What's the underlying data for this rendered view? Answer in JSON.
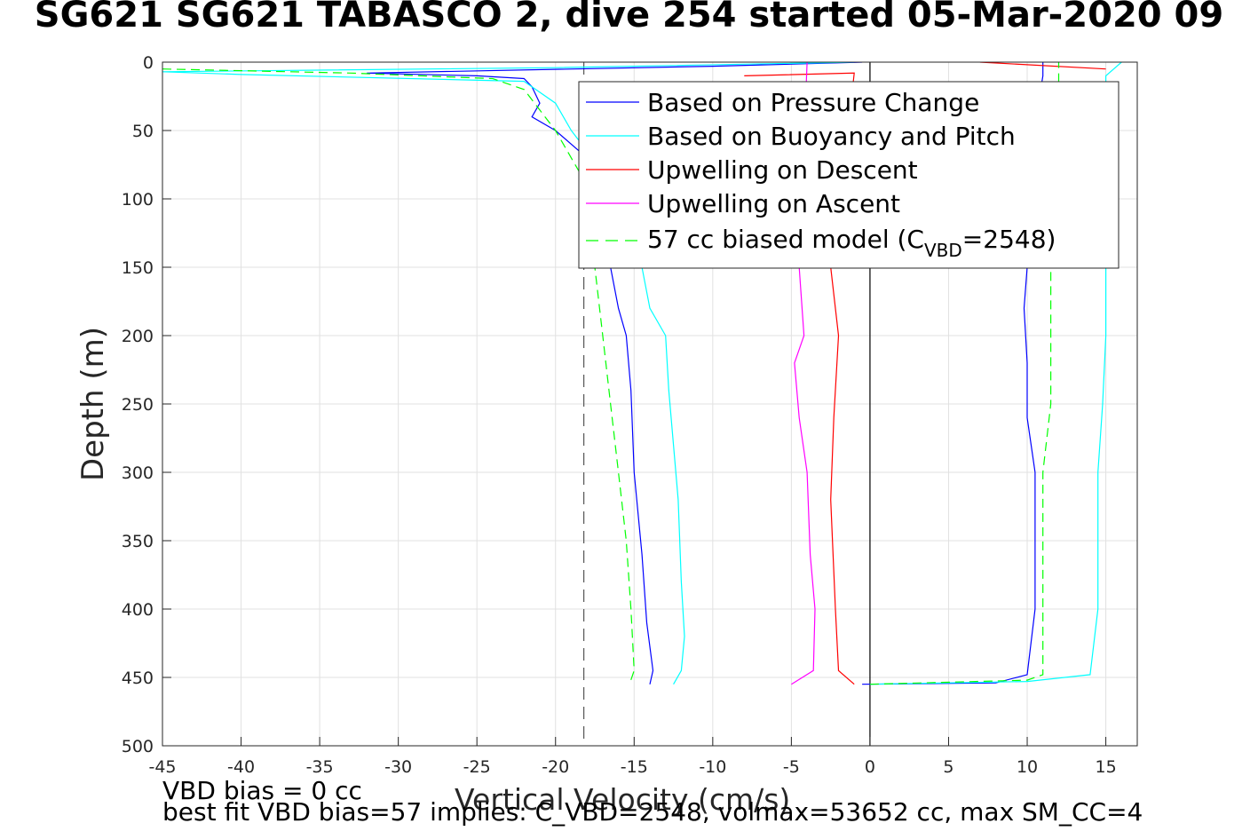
{
  "chart_data": {
    "type": "line",
    "title": "SG621 SG621 TABASCO 2, dive 254 started 05-Mar-2020 09",
    "xlabel": "Vertical Velocity (cm/s)",
    "ylabel": "Depth (m)",
    "xlim": [
      -45,
      17
    ],
    "ylim": [
      0,
      500
    ],
    "y_reversed": true,
    "grid": true,
    "legend_position": "top-right",
    "x_ticks": [
      "-45",
      "-40",
      "-35",
      "-30",
      "-25",
      "-20",
      "-15",
      "-10",
      "-5",
      "0",
      "5",
      "10",
      "15"
    ],
    "y_ticks": [
      "0",
      "50",
      "100",
      "150",
      "200",
      "250",
      "300",
      "350",
      "400",
      "450",
      "500"
    ],
    "reference_lines": [
      {
        "type": "vertical",
        "x": 0,
        "style": "solid",
        "color": "#000000"
      },
      {
        "type": "vertical",
        "x": -18.2,
        "style": "dashed",
        "color": "#555555"
      }
    ],
    "series": [
      {
        "name": "Based on Pressure Change",
        "color": "#0000ff",
        "style": "solid",
        "descent": [
          [
            -0.5,
            0
          ],
          [
            -10,
            3
          ],
          [
            -32,
            8
          ],
          [
            -25,
            10
          ],
          [
            -22,
            12
          ],
          [
            -21.5,
            18
          ],
          [
            -21,
            30
          ],
          [
            -21.5,
            40
          ],
          [
            -20,
            50
          ],
          [
            -18,
            70
          ],
          [
            -16.5,
            150
          ],
          [
            -16,
            180
          ],
          [
            -15.5,
            200
          ],
          [
            -15.2,
            240
          ],
          [
            -15,
            300
          ],
          [
            -14.5,
            360
          ],
          [
            -14.2,
            410
          ],
          [
            -13.8,
            445
          ],
          [
            -14,
            455
          ]
        ],
        "ascent": [
          [
            -0.5,
            455
          ],
          [
            8,
            454
          ],
          [
            10,
            448
          ],
          [
            10.5,
            400
          ],
          [
            10.5,
            300
          ],
          [
            10,
            260
          ],
          [
            10,
            220
          ],
          [
            9.8,
            180
          ],
          [
            10,
            150
          ],
          [
            10.3,
            60
          ],
          [
            11,
            10
          ],
          [
            11,
            0
          ]
        ]
      },
      {
        "name": "Based on Buoyancy and Pitch",
        "color": "#00ffff",
        "style": "solid",
        "descent": [
          [
            -1,
            0
          ],
          [
            -20,
            4
          ],
          [
            -45,
            7
          ],
          [
            -40,
            9
          ],
          [
            -22,
            14
          ],
          [
            -20,
            30
          ],
          [
            -19,
            50
          ],
          [
            -17,
            80
          ],
          [
            -14.5,
            150
          ],
          [
            -14,
            180
          ],
          [
            -13,
            200
          ],
          [
            -12.8,
            240
          ],
          [
            -12.5,
            280
          ],
          [
            -12.2,
            320
          ],
          [
            -12,
            380
          ],
          [
            -11.8,
            420
          ],
          [
            -12,
            445
          ],
          [
            -12.5,
            455
          ]
        ],
        "ascent": [
          [
            0,
            455
          ],
          [
            10,
            453
          ],
          [
            14,
            448
          ],
          [
            14.5,
            400
          ],
          [
            14.5,
            300
          ],
          [
            14.8,
            250
          ],
          [
            15,
            200
          ],
          [
            15,
            150
          ],
          [
            15,
            60
          ],
          [
            15,
            10
          ],
          [
            16,
            0
          ]
        ]
      },
      {
        "name": "Upwelling on Descent",
        "color": "#ff0000",
        "style": "solid",
        "descent": [
          [
            -8,
            10
          ],
          [
            -1,
            8
          ],
          [
            -1.5,
            60
          ],
          [
            -2.5,
            150
          ],
          [
            -2,
            200
          ],
          [
            -2.3,
            260
          ],
          [
            -2.5,
            320
          ],
          [
            -2.2,
            400
          ],
          [
            -2,
            445
          ],
          [
            -1,
            455
          ]
        ],
        "ascent": [
          [
            7,
            0
          ],
          [
            15,
            5
          ]
        ]
      },
      {
        "name": "Upwelling on Ascent",
        "color": "#ff00ff",
        "style": "solid",
        "descent": [
          [
            -4,
            0
          ],
          [
            -4.2,
            60
          ],
          [
            -4.5,
            150
          ],
          [
            -4.2,
            200
          ],
          [
            -4.8,
            220
          ],
          [
            -4.5,
            260
          ],
          [
            -4,
            300
          ],
          [
            -3.8,
            360
          ],
          [
            -3.5,
            400
          ],
          [
            -3.6,
            445
          ],
          [
            -5,
            455
          ]
        ],
        "ascent": []
      },
      {
        "name": "57 cc biased model (C_VBD=2548)",
        "color": "#00ff00",
        "style": "dashed",
        "descent": [
          [
            -45,
            5
          ],
          [
            -33,
            8
          ],
          [
            -24,
            12
          ],
          [
            -22,
            20
          ],
          [
            -21,
            35
          ],
          [
            -20,
            50
          ],
          [
            -18.5,
            80
          ],
          [
            -17.5,
            150
          ],
          [
            -17,
            200
          ],
          [
            -16.5,
            250
          ],
          [
            -16,
            300
          ],
          [
            -15.5,
            350
          ],
          [
            -15.2,
            400
          ],
          [
            -15,
            445
          ],
          [
            -15.3,
            455
          ]
        ],
        "ascent": [
          [
            0,
            455
          ],
          [
            10,
            452
          ],
          [
            11,
            448
          ],
          [
            11,
            400
          ],
          [
            11,
            300
          ],
          [
            11.5,
            250
          ],
          [
            11.5,
            200
          ],
          [
            11.5,
            150
          ],
          [
            12,
            60
          ],
          [
            12,
            10
          ],
          [
            12,
            0
          ]
        ]
      }
    ]
  },
  "legend": {
    "items": [
      {
        "label": "Based on Pressure Change",
        "color": "#0000ff",
        "dash": false
      },
      {
        "label": "Based on Buoyancy and Pitch",
        "color": "#00ffff",
        "dash": false
      },
      {
        "label": "Upwelling on Descent",
        "color": "#ff0000",
        "dash": false
      },
      {
        "label": "Upwelling on Ascent",
        "color": "#ff00ff",
        "dash": false
      }
    ],
    "model_prefix": "57 cc biased model (C",
    "model_sub": "VBD",
    "model_suffix": "=2548)",
    "model_color": "#00ff00"
  },
  "footnotes": {
    "line1": "VBD bias = 0 cc",
    "line2": "best fit VBD bias=57 implies: C_VBD=2548, volmax=53652 cc, max SM_CC=4"
  }
}
